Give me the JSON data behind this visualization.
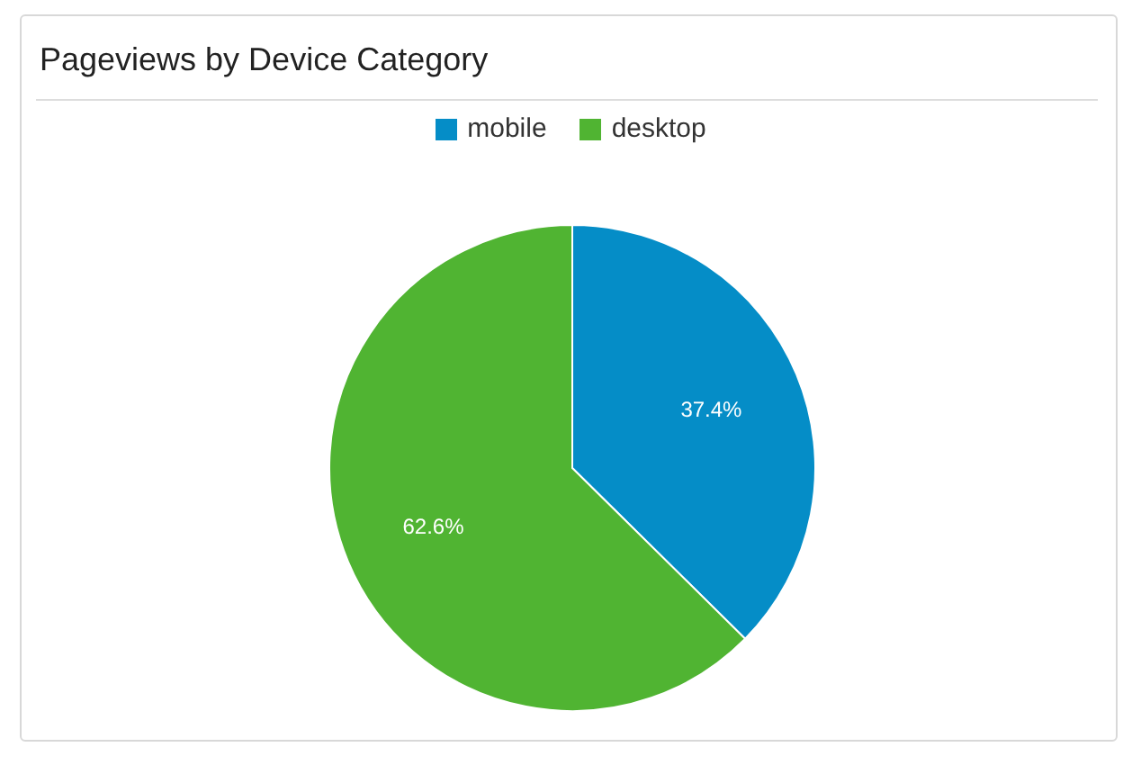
{
  "chart_data": {
    "type": "pie",
    "title": "Pageviews by Device Category",
    "categories": [
      "mobile",
      "desktop"
    ],
    "values": [
      37.4,
      62.6
    ],
    "colors": [
      "#058dc7",
      "#50b432"
    ],
    "value_labels": [
      "37.4%",
      "62.6%"
    ],
    "legend": "top"
  }
}
